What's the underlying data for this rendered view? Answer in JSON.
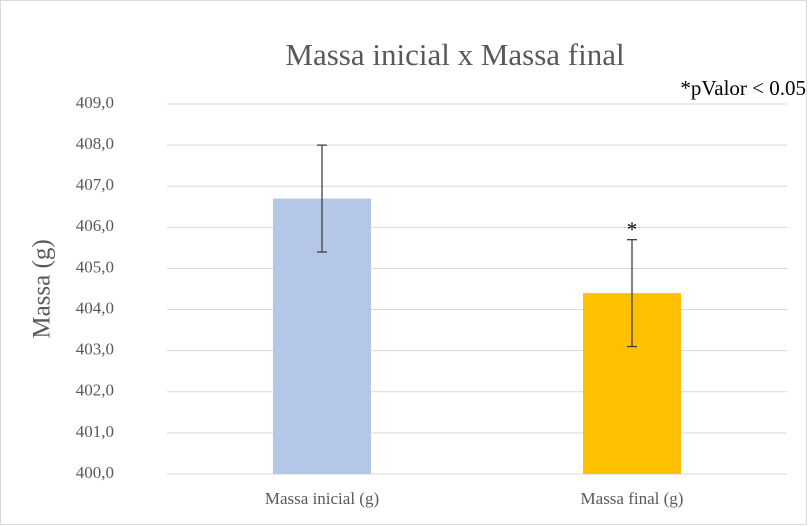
{
  "chart_data": {
    "type": "bar",
    "title": "Massa inicial x Massa final",
    "y_label": "Massa (g)",
    "annotation": "*pValor < 0.05",
    "significance_marks": [
      null,
      "*"
    ],
    "categories": [
      "Massa inicial (g)",
      "Massa final (g)"
    ],
    "values": [
      406.7,
      404.4
    ],
    "errors": [
      1.3,
      1.3
    ],
    "colors": [
      "#b4c7e7",
      "#ffc000"
    ],
    "ylim": [
      400,
      409
    ],
    "yticks": [
      {
        "value": 400,
        "label": "400,0"
      },
      {
        "value": 401,
        "label": "401,0"
      },
      {
        "value": 402,
        "label": "402,0"
      },
      {
        "value": 403,
        "label": "403,0"
      },
      {
        "value": 404,
        "label": "404,0"
      },
      {
        "value": 405,
        "label": "405,0"
      },
      {
        "value": 406,
        "label": "406,0"
      },
      {
        "value": 407,
        "label": "407,0"
      },
      {
        "value": 408,
        "label": "408,0"
      },
      {
        "value": 409,
        "label": "409,0"
      }
    ],
    "grid": true
  }
}
